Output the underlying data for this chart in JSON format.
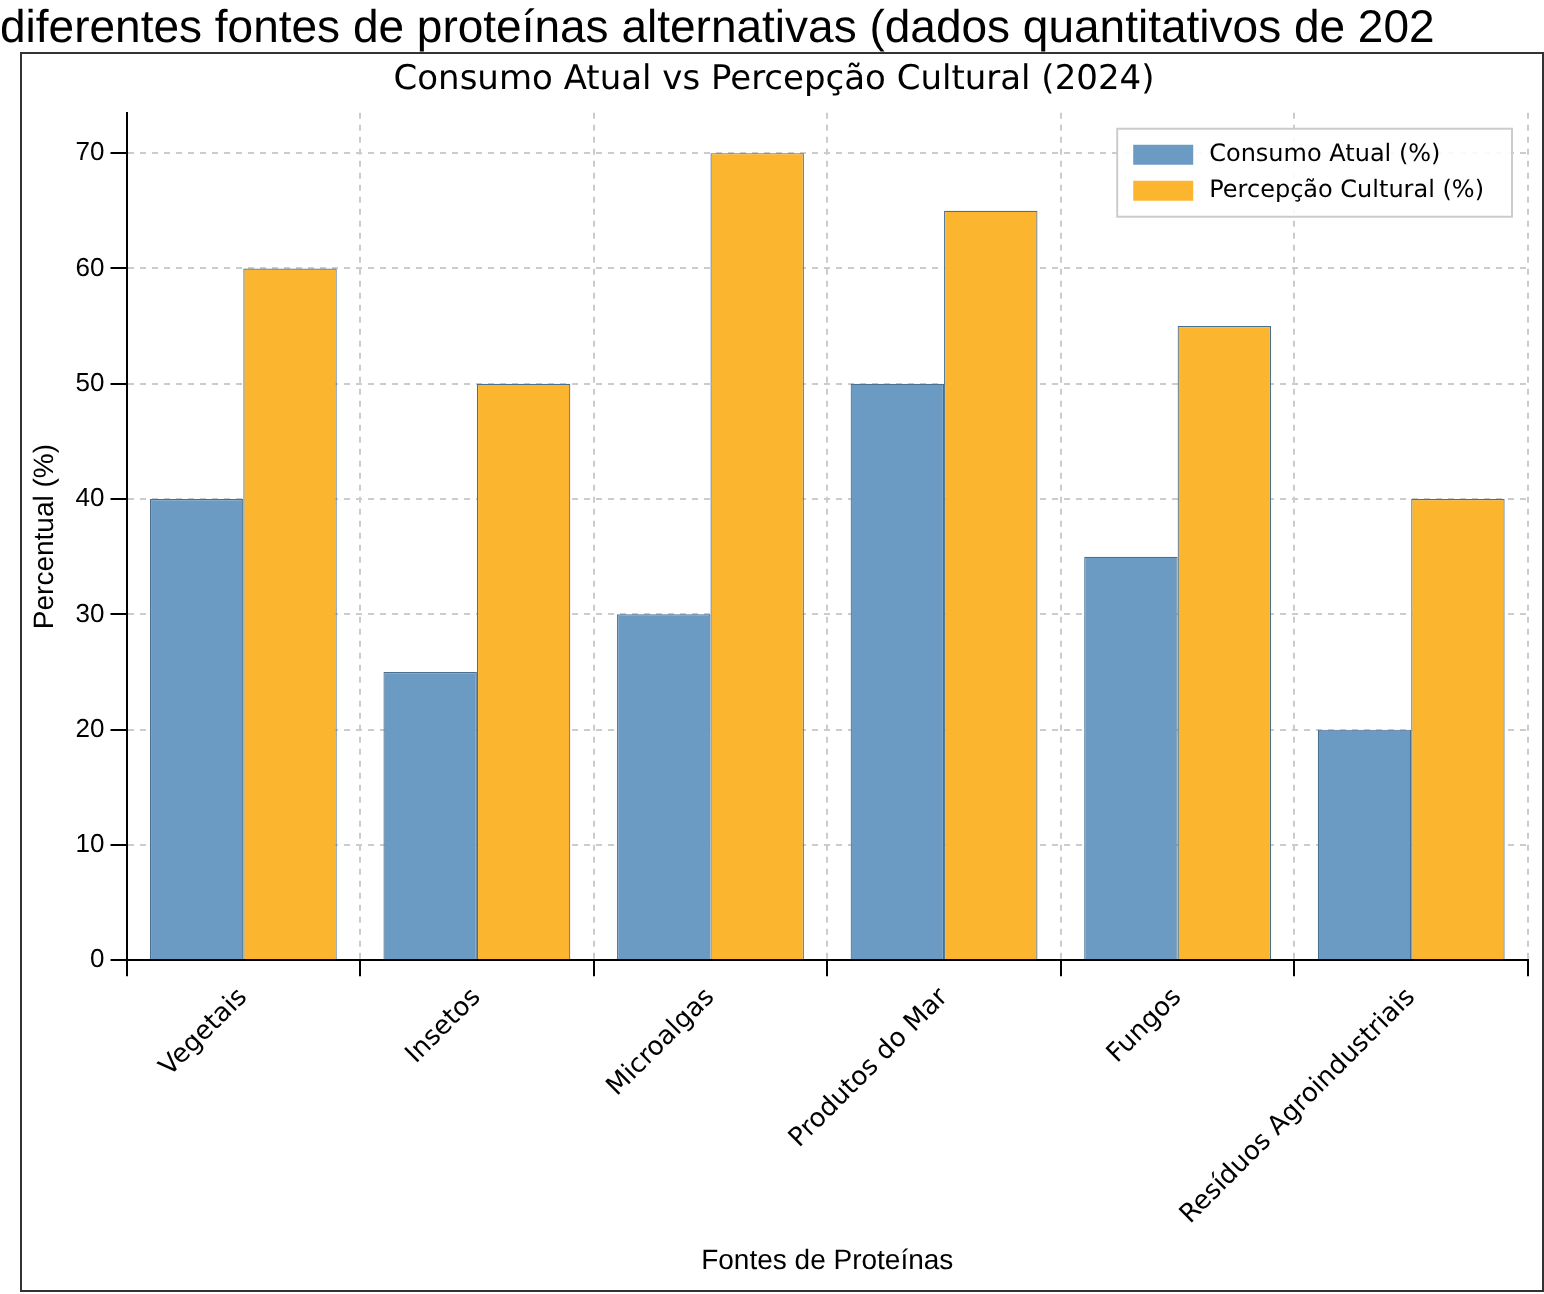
{
  "chart_data": {
    "type": "bar",
    "title": "Consumo Atual vs Percepção Cultural (2024)",
    "annotations": [
      "diferentes fontes de proteínas alternativas (dados quantitativos de 202"
    ],
    "xlabel": "Fontes de Proteínas",
    "ylabel": "Percentual (%)",
    "categories": [
      "Vegetais",
      "Insetos",
      "Microalgas",
      "Produtos do Mar",
      "Fungos",
      "Resíduos Agroindustriais"
    ],
    "series": [
      {
        "name": "Consumo Atual (%)",
        "color": "#6b9bc3",
        "values": [
          40,
          25,
          30,
          50,
          35,
          20
        ]
      },
      {
        "name": "Percepção Cultural (%)",
        "color": "#fbb52f",
        "values": [
          60,
          50,
          70,
          65,
          55,
          40
        ]
      }
    ],
    "ylim": [
      0,
      73.5
    ],
    "yticks": [
      0,
      10,
      20,
      30,
      40,
      50,
      60,
      70
    ],
    "grid": true,
    "legend": "top right"
  }
}
